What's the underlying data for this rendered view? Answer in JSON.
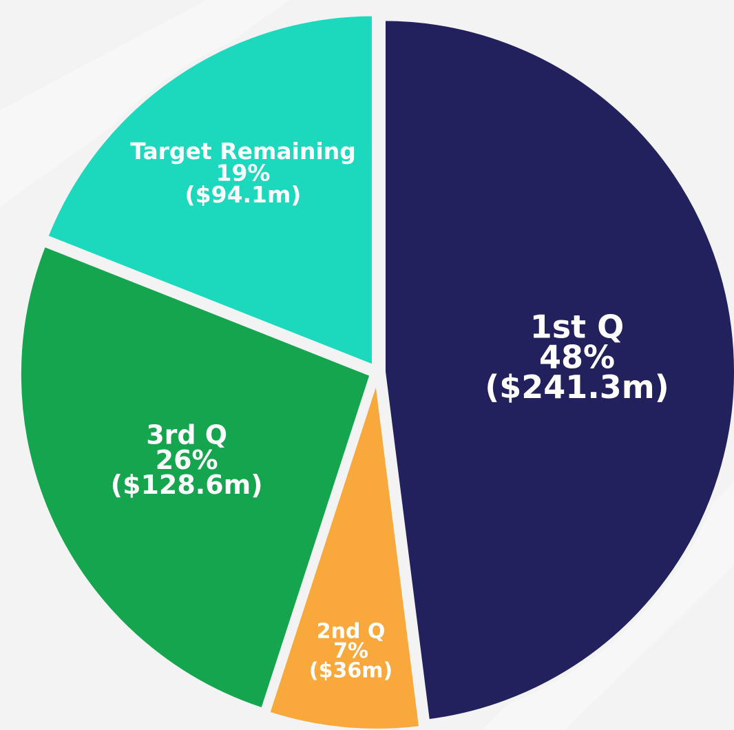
{
  "chart_data": {
    "type": "pie",
    "categories": [
      "1st Q",
      "2nd Q",
      "3rd Q",
      "Target Remaining"
    ],
    "values": [
      48,
      7,
      26,
      19
    ],
    "value_labels": [
      "48%",
      "7%",
      "26%",
      "19%"
    ],
    "amount_labels": [
      "($241.3m)",
      "($36m)",
      "($128.6m)",
      "($94.1m)"
    ],
    "colors": [
      "#22215e",
      "#f9a93b",
      "#16a54f",
      "#1cd9bd"
    ]
  }
}
